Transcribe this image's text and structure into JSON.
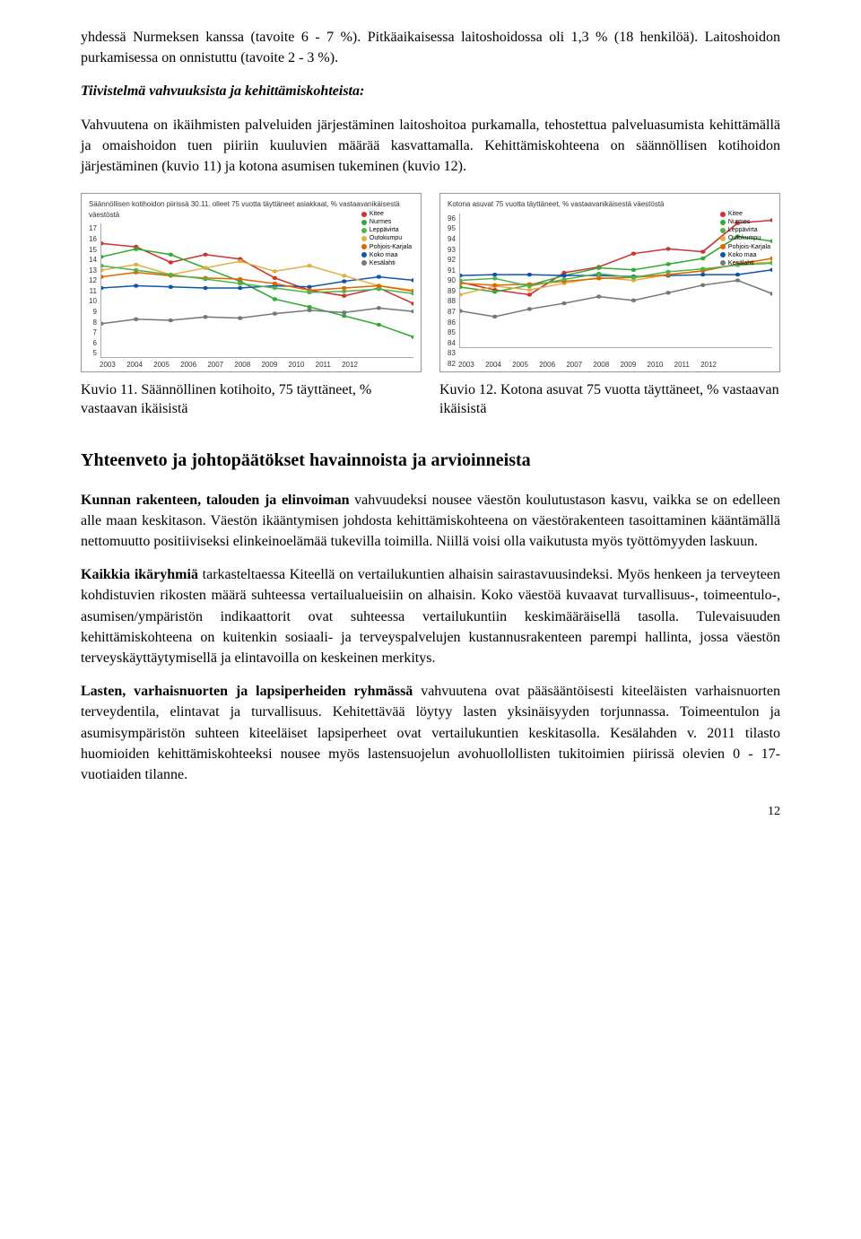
{
  "para1": "yhdessä Nurmeksen kanssa (tavoite 6 - 7 %). Pitkäaikaisessa laitoshoidossa oli 1,3 % (18 henkilöä). Laitoshoidon purkamisessa on onnistuttu (tavoite 2 - 3 %).",
  "para2_title": "Tiivistelmä vahvuuksista ja kehittämiskohteista:",
  "para3": "Vahvuutena on ikäihmisten palveluiden järjestäminen laitoshoitoa purkamalla, tehostettua palveluasumista kehittämällä ja omaishoidon tuen piiriin kuuluvien määrää kasvattamalla. Kehittämiskohteena on säännöllisen kotihoidon järjestäminen (kuvio 11) ja kotona asumisen tukeminen (kuvio 12).",
  "chart1": {
    "title": "Säännöllisen kotihoidon piirissä 30.11. olleet 75 vuotta täyttäneet asiakkaat, % vastaavanikäisestä väestöstä",
    "yticks": [
      "17",
      "16",
      "15",
      "14",
      "13",
      "12",
      "11",
      "10",
      "9",
      "8",
      "7",
      "6",
      "5"
    ],
    "xticks": [
      "2003",
      "2004",
      "2005",
      "2006",
      "2007",
      "2008",
      "2009",
      "2010",
      "2011",
      "2012"
    ],
    "legend": [
      {
        "label": "Kitee",
        "color": "#cc3333"
      },
      {
        "label": "Nurmes",
        "color": "#33aa33"
      },
      {
        "label": "Leppävirta",
        "color": "#4db34d"
      },
      {
        "label": "Outokumpu",
        "color": "#e0b040"
      },
      {
        "label": "Pohjois-Karjala",
        "color": "#dd6600"
      },
      {
        "label": "Koko maa",
        "color": "#1155aa"
      },
      {
        "label": "Kesälahti",
        "color": "#777777"
      }
    ],
    "series": [
      {
        "color": "#cc3333",
        "pts": [
          [
            0,
            15.2
          ],
          [
            1,
            14.9
          ],
          [
            2,
            13.5
          ],
          [
            3,
            14.2
          ],
          [
            4,
            13.8
          ],
          [
            5,
            12.1
          ],
          [
            6,
            11.0
          ],
          [
            7,
            10.5
          ],
          [
            8,
            11.2
          ],
          [
            9,
            9.8
          ]
        ]
      },
      {
        "color": "#33aa33",
        "pts": [
          [
            0,
            14.0
          ],
          [
            1,
            14.7
          ],
          [
            2,
            14.2
          ],
          [
            3,
            13.0
          ],
          [
            4,
            11.8
          ],
          [
            5,
            10.2
          ],
          [
            6,
            9.5
          ],
          [
            7,
            8.7
          ],
          [
            8,
            7.9
          ],
          [
            9,
            6.8
          ]
        ]
      },
      {
        "color": "#1155aa",
        "pts": [
          [
            0,
            11.2
          ],
          [
            1,
            11.4
          ],
          [
            2,
            11.3
          ],
          [
            3,
            11.2
          ],
          [
            4,
            11.2
          ],
          [
            5,
            11.4
          ],
          [
            6,
            11.3
          ],
          [
            7,
            11.8
          ],
          [
            8,
            12.2
          ],
          [
            9,
            11.9
          ]
        ]
      },
      {
        "color": "#e0b040",
        "pts": [
          [
            0,
            12.8
          ],
          [
            1,
            13.3
          ],
          [
            2,
            12.4
          ],
          [
            3,
            13.0
          ],
          [
            4,
            13.6
          ],
          [
            5,
            12.7
          ],
          [
            6,
            13.2
          ],
          [
            7,
            12.3
          ],
          [
            8,
            11.4
          ],
          [
            9,
            11.0
          ]
        ]
      },
      {
        "color": "#dd6600",
        "pts": [
          [
            0,
            12.2
          ],
          [
            1,
            12.6
          ],
          [
            2,
            12.3
          ],
          [
            3,
            12.1
          ],
          [
            4,
            12.0
          ],
          [
            5,
            11.6
          ],
          [
            6,
            11.0
          ],
          [
            7,
            11.2
          ],
          [
            8,
            11.4
          ],
          [
            9,
            10.9
          ]
        ]
      },
      {
        "color": "#4db34d",
        "pts": [
          [
            0,
            13.2
          ],
          [
            1,
            12.8
          ],
          [
            2,
            12.4
          ],
          [
            3,
            12.0
          ],
          [
            4,
            11.6
          ],
          [
            5,
            11.2
          ],
          [
            6,
            10.8
          ],
          [
            7,
            10.9
          ],
          [
            8,
            11.1
          ],
          [
            9,
            10.7
          ]
        ]
      },
      {
        "color": "#777777",
        "pts": [
          [
            0,
            8.0
          ],
          [
            1,
            8.4
          ],
          [
            2,
            8.3
          ],
          [
            3,
            8.6
          ],
          [
            4,
            8.5
          ],
          [
            5,
            8.9
          ],
          [
            6,
            9.2
          ],
          [
            7,
            9.0
          ],
          [
            8,
            9.4
          ],
          [
            9,
            9.1
          ]
        ]
      }
    ],
    "ymin": 5,
    "ymax": 17
  },
  "chart2": {
    "title": "Kotona asuvat 75 vuotta täyttäneet, % vastaavanikäisestä väestöstä",
    "yticks": [
      "96",
      "95",
      "94",
      "93",
      "92",
      "91",
      "90",
      "89",
      "88",
      "87",
      "86",
      "85",
      "84",
      "83",
      "82"
    ],
    "xticks": [
      "2003",
      "2004",
      "2005",
      "2006",
      "2007",
      "2008",
      "2009",
      "2010",
      "2011",
      "2012"
    ],
    "legend": [
      {
        "label": "Kitee",
        "color": "#cc3333"
      },
      {
        "label": "Nurmes",
        "color": "#33aa33"
      },
      {
        "label": "Leppävirta",
        "color": "#4db34d"
      },
      {
        "label": "Outokumpu",
        "color": "#e0b040"
      },
      {
        "label": "Pohjois-Karjala",
        "color": "#dd6600"
      },
      {
        "label": "Koko maa",
        "color": "#1155aa"
      },
      {
        "label": "Kesälahti",
        "color": "#777777"
      }
    ],
    "series": [
      {
        "color": "#cc3333",
        "pts": [
          [
            0,
            88.8
          ],
          [
            1,
            88.0
          ],
          [
            2,
            87.5
          ],
          [
            3,
            89.8
          ],
          [
            4,
            90.4
          ],
          [
            5,
            91.8
          ],
          [
            6,
            92.3
          ],
          [
            7,
            92.0
          ],
          [
            8,
            95.0
          ],
          [
            9,
            95.3
          ]
        ]
      },
      {
        "color": "#33aa33",
        "pts": [
          [
            0,
            88.3
          ],
          [
            1,
            87.8
          ],
          [
            2,
            88.5
          ],
          [
            3,
            89.5
          ],
          [
            4,
            90.3
          ],
          [
            5,
            90.1
          ],
          [
            6,
            90.7
          ],
          [
            7,
            91.3
          ],
          [
            8,
            93.6
          ],
          [
            9,
            93.1
          ]
        ]
      },
      {
        "color": "#1155aa",
        "pts": [
          [
            0,
            89.5
          ],
          [
            1,
            89.6
          ],
          [
            2,
            89.6
          ],
          [
            3,
            89.5
          ],
          [
            4,
            89.5
          ],
          [
            5,
            89.4
          ],
          [
            6,
            89.5
          ],
          [
            7,
            89.6
          ],
          [
            8,
            89.6
          ],
          [
            9,
            90.1
          ]
        ]
      },
      {
        "color": "#e0b040",
        "pts": [
          [
            0,
            87.5
          ],
          [
            1,
            88.4
          ],
          [
            2,
            88.0
          ],
          [
            3,
            88.7
          ],
          [
            4,
            89.3
          ],
          [
            5,
            89.0
          ],
          [
            6,
            89.6
          ],
          [
            7,
            90.0
          ],
          [
            8,
            90.7
          ],
          [
            9,
            90.9
          ]
        ]
      },
      {
        "color": "#dd6600",
        "pts": [
          [
            0,
            88.7
          ],
          [
            1,
            88.5
          ],
          [
            2,
            88.6
          ],
          [
            3,
            88.9
          ],
          [
            4,
            89.2
          ],
          [
            5,
            89.3
          ],
          [
            6,
            89.6
          ],
          [
            7,
            90.0
          ],
          [
            8,
            90.7
          ],
          [
            9,
            91.3
          ]
        ]
      },
      {
        "color": "#4db34d",
        "pts": [
          [
            0,
            89.0
          ],
          [
            1,
            89.2
          ],
          [
            2,
            88.4
          ],
          [
            3,
            89.1
          ],
          [
            4,
            89.7
          ],
          [
            5,
            89.3
          ],
          [
            6,
            89.9
          ],
          [
            7,
            90.2
          ],
          [
            8,
            90.6
          ],
          [
            9,
            90.8
          ]
        ]
      },
      {
        "color": "#777777",
        "pts": [
          [
            0,
            85.8
          ],
          [
            1,
            85.2
          ],
          [
            2,
            86.0
          ],
          [
            3,
            86.6
          ],
          [
            4,
            87.3
          ],
          [
            5,
            86.9
          ],
          [
            6,
            87.7
          ],
          [
            7,
            88.5
          ],
          [
            8,
            89.0
          ],
          [
            9,
            87.6
          ]
        ]
      }
    ],
    "ymin": 82,
    "ymax": 96
  },
  "caption1": "Kuvio 11. Säännöllinen kotihoito, 75 täyttäneet, % vastaavan ikäisistä",
  "caption2": "Kuvio 12. Kotona asuvat 75 vuotta täyttäneet, % vastaavan ikäisistä",
  "section_heading": "Yhteenveto ja johtopäätökset havainnoista ja arvioinneista",
  "p4_bold": "Kunnan rakenteen, talouden ja elinvoiman",
  "p4_rest": " vahvuudeksi nousee väestön koulutustason kasvu, vaikka se on edelleen alle maan keskitason. Väestön ikääntymisen johdosta kehittämiskohteena on väestörakenteen tasoittaminen kääntämällä nettomuutto positiiviseksi elinkeinoelämää tukevilla toimilla. Niillä voisi olla vaikutusta myös työttömyyden laskuun.",
  "p5_bold": "Kaikkia ikäryhmiä",
  "p5_rest": " tarkasteltaessa Kiteellä on vertailukuntien alhaisin sairastavuusindeksi. Myös henkeen ja terveyteen kohdistuvien rikosten määrä suhteessa vertailualueisiin on alhaisin. Koko väestöä kuvaavat turvallisuus-, toimeentulo-, asumisen/ympäristön indikaattorit ovat suhteessa vertailukuntiin keskimääräisellä tasolla. Tulevaisuuden kehittämiskohteena on kuitenkin sosiaali- ja terveyspalvelujen kustannusrakenteen parempi hallinta, jossa väestön terveyskäyttäytymisellä ja elintavoilla on keskeinen merkitys.",
  "p6_bold": "Lasten, varhaisnuorten ja lapsiperheiden ryhmässä",
  "p6_rest": " vahvuutena ovat pääsääntöisesti kiteeläisten varhaisnuorten terveydentila, elintavat ja turvallisuus. Kehitettävää löytyy lasten yksinäisyyden torjunnassa. Toimeentulon ja asumisympäristön suhteen kiteeläiset lapsiperheet ovat vertailukuntien keskitasolla. Kesälahden v. 2011 tilasto huomioiden kehittämiskohteeksi nousee myös lastensuojelun avohuollollisten tukitoimien piirissä olevien 0 - 17-vuotiaiden tilanne.",
  "page_number": "12"
}
